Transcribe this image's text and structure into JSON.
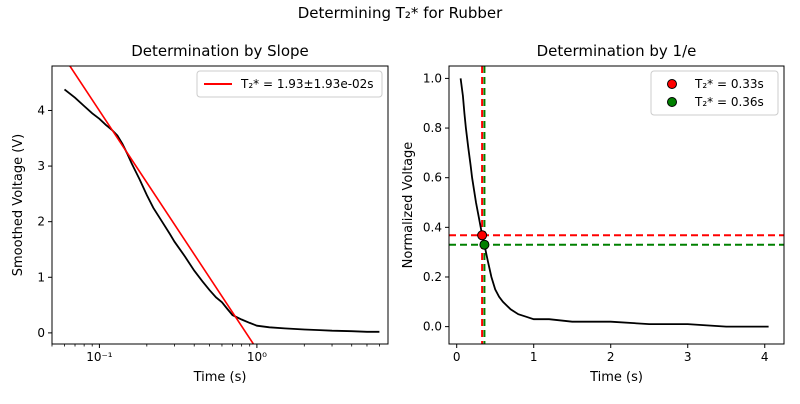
{
  "suptitle": "Determining T₂* for Rubber",
  "chart_data": [
    {
      "type": "line",
      "title": "Determination by Slope",
      "xlabel": "Time (s)",
      "ylabel": "Smoothed Voltage (V)",
      "xscale": "log",
      "xlim": [
        0.05,
        6.8
      ],
      "ylim": [
        -0.2,
        4.8
      ],
      "xticks": [
        {
          "value": 0.1,
          "label": "10⁻¹"
        },
        {
          "value": 1,
          "label": "10⁰"
        }
      ],
      "yticks": [
        0,
        1,
        2,
        3,
        4
      ],
      "grid": false,
      "legend_position": "upper right",
      "series": [
        {
          "name": "",
          "color": "#000000",
          "x": [
            0.06,
            0.07,
            0.08,
            0.09,
            0.1,
            0.11,
            0.12,
            0.13,
            0.14,
            0.15,
            0.16,
            0.18,
            0.2,
            0.22,
            0.25,
            0.28,
            0.3,
            0.35,
            0.4,
            0.45,
            0.5,
            0.55,
            0.6,
            0.65,
            0.7,
            0.8,
            0.9,
            1.0,
            1.2,
            1.5,
            2.0,
            2.5,
            3.0,
            4.0,
            5.0,
            6.0
          ],
          "y": [
            4.38,
            4.23,
            4.08,
            3.95,
            3.85,
            3.74,
            3.65,
            3.55,
            3.4,
            3.23,
            3.05,
            2.76,
            2.48,
            2.25,
            2.0,
            1.78,
            1.64,
            1.37,
            1.12,
            0.93,
            0.77,
            0.64,
            0.55,
            0.43,
            0.32,
            0.24,
            0.18,
            0.13,
            0.1,
            0.08,
            0.06,
            0.05,
            0.04,
            0.03,
            0.02,
            0.02
          ]
        },
        {
          "name": "T₂* = 1.93±1.93e-02s",
          "color": "#ff0000",
          "x": [
            0.065,
            0.95
          ],
          "y": [
            4.8,
            -0.2
          ]
        }
      ]
    },
    {
      "type": "line",
      "title": "Determination by 1/e",
      "xlabel": "Time (s)",
      "ylabel": "Normalized Voltage",
      "xlim": [
        -0.1,
        4.25
      ],
      "ylim": [
        -0.07,
        1.05
      ],
      "xticks": [
        {
          "value": 0,
          "label": "0"
        },
        {
          "value": 1,
          "label": "1"
        },
        {
          "value": 2,
          "label": "2"
        },
        {
          "value": 3,
          "label": "3"
        },
        {
          "value": 4,
          "label": "4"
        }
      ],
      "yticks": [
        0.0,
        0.2,
        0.4,
        0.6,
        0.8,
        1.0
      ],
      "grid": false,
      "legend_position": "upper right",
      "series": [
        {
          "name": "",
          "color": "#000000",
          "x": [
            0.05,
            0.08,
            0.1,
            0.12,
            0.15,
            0.18,
            0.2,
            0.25,
            0.3,
            0.33,
            0.36,
            0.4,
            0.45,
            0.5,
            0.55,
            0.6,
            0.7,
            0.8,
            0.9,
            1.0,
            1.2,
            1.5,
            2.0,
            2.5,
            3.0,
            3.5,
            4.0,
            4.05
          ],
          "y": [
            1.0,
            0.93,
            0.86,
            0.8,
            0.72,
            0.65,
            0.6,
            0.5,
            0.42,
            0.37,
            0.33,
            0.27,
            0.2,
            0.15,
            0.12,
            0.1,
            0.07,
            0.05,
            0.04,
            0.03,
            0.03,
            0.02,
            0.02,
            0.01,
            0.01,
            0.0,
            0.0,
            0.0
          ]
        }
      ],
      "points": [
        {
          "name": "T₂* = 0.33s",
          "x": 0.33,
          "y": 0.368,
          "color": "#ff0000"
        },
        {
          "name": "T₂* = 0.36s",
          "x": 0.36,
          "y": 0.33,
          "color": "#008000"
        }
      ],
      "reference_lines": [
        {
          "orientation": "vertical",
          "value": 0.33,
          "color": "#ff0000",
          "style": "dashed"
        },
        {
          "orientation": "vertical",
          "value": 0.36,
          "color": "#008000",
          "style": "dashed"
        },
        {
          "orientation": "horizontal",
          "value": 0.368,
          "color": "#ff0000",
          "style": "dashed"
        },
        {
          "orientation": "horizontal",
          "value": 0.33,
          "color": "#008000",
          "style": "dashed"
        }
      ]
    }
  ]
}
